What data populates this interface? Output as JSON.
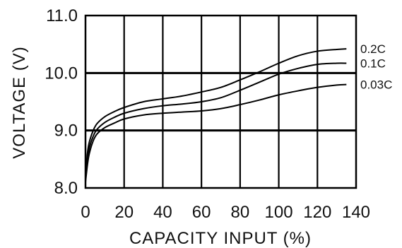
{
  "chart_data": {
    "type": "line",
    "title": "",
    "xlabel": "CAPACITY  INPUT (%)",
    "ylabel": "VOLTAGE (V)",
    "xlim": [
      0,
      140
    ],
    "ylim": [
      8.0,
      11.0
    ],
    "x_ticks": [
      0,
      20,
      40,
      60,
      80,
      100,
      120,
      140
    ],
    "x_tick_labels": [
      "0",
      "20",
      "40",
      "60",
      "80",
      "100",
      "120",
      "140"
    ],
    "y_ticks": [
      8.0,
      9.0,
      10.0,
      11.0
    ],
    "y_tick_labels": [
      "8.0",
      "9.0",
      "10.0",
      "11.0"
    ],
    "major_gridlines_y": [
      9.0,
      10.0
    ],
    "grid": true,
    "series": [
      {
        "name": "0.2C",
        "x": [
          0,
          1,
          2,
          4,
          6,
          10,
          15,
          20,
          30,
          40,
          50,
          60,
          70,
          80,
          90,
          100,
          110,
          120,
          130,
          135
        ],
        "y": [
          8.2,
          8.6,
          8.8,
          9.0,
          9.12,
          9.24,
          9.33,
          9.4,
          9.5,
          9.55,
          9.6,
          9.67,
          9.75,
          9.88,
          10.02,
          10.17,
          10.3,
          10.38,
          10.41,
          10.42
        ]
      },
      {
        "name": "0.1C",
        "x": [
          0,
          1,
          2,
          4,
          6,
          10,
          15,
          20,
          30,
          40,
          50,
          60,
          70,
          80,
          90,
          100,
          110,
          120,
          130,
          135
        ],
        "y": [
          8.15,
          8.5,
          8.7,
          8.9,
          9.02,
          9.14,
          9.23,
          9.3,
          9.38,
          9.43,
          9.46,
          9.5,
          9.57,
          9.7,
          9.84,
          9.98,
          10.08,
          10.15,
          10.17,
          10.17
        ]
      },
      {
        "name": "0.03C",
        "x": [
          0,
          1,
          2,
          4,
          6,
          10,
          15,
          20,
          30,
          40,
          50,
          60,
          70,
          80,
          90,
          100,
          110,
          120,
          130,
          135
        ],
        "y": [
          8.1,
          8.4,
          8.6,
          8.82,
          8.94,
          9.05,
          9.13,
          9.2,
          9.27,
          9.3,
          9.32,
          9.34,
          9.38,
          9.45,
          9.53,
          9.62,
          9.69,
          9.75,
          9.79,
          9.8
        ]
      }
    ]
  }
}
